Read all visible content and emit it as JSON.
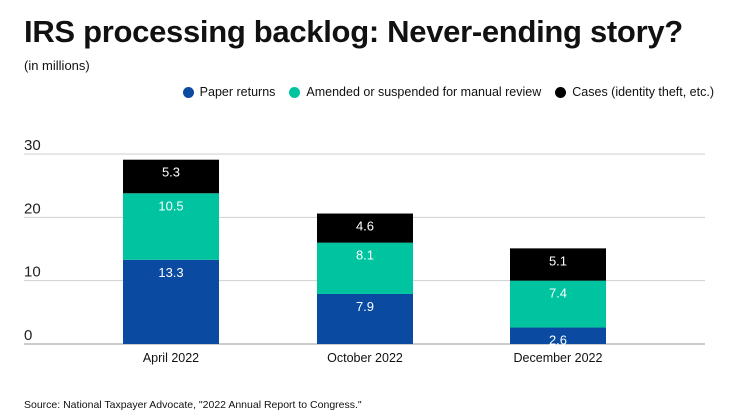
{
  "title": "IRS processing backlog: Never-ending story?",
  "subtitle": "(in millions)",
  "source": "Source: National Taxpayer Advocate, \"2022 Annual Report to Congress.\"",
  "legend": [
    {
      "label": "Paper returns",
      "color": "#0a4aa0"
    },
    {
      "label": "Amended or suspended for manual review",
      "color": "#00c4a0"
    },
    {
      "label": "Cases (identity theft, etc.)",
      "color": "#000000"
    }
  ],
  "chart_data": {
    "type": "bar",
    "stacked": true,
    "title": "IRS processing backlog: Never-ending story?",
    "subtitle": "(in millions)",
    "categories": [
      "April 2022",
      "October 2022",
      "December 2022"
    ],
    "series": [
      {
        "name": "Paper returns",
        "color": "#0a4aa0",
        "values": [
          13.3,
          7.9,
          2.6
        ]
      },
      {
        "name": "Amended or suspended for manual review",
        "color": "#00c4a0",
        "values": [
          10.5,
          8.1,
          7.4
        ]
      },
      {
        "name": "Cases (identity theft, etc.)",
        "color": "#000000",
        "values": [
          5.3,
          4.6,
          5.1
        ]
      }
    ],
    "yticks": [
      0,
      10,
      20,
      30
    ],
    "ylim": [
      0,
      30
    ],
    "grid": true,
    "legend_position": "top-right"
  }
}
